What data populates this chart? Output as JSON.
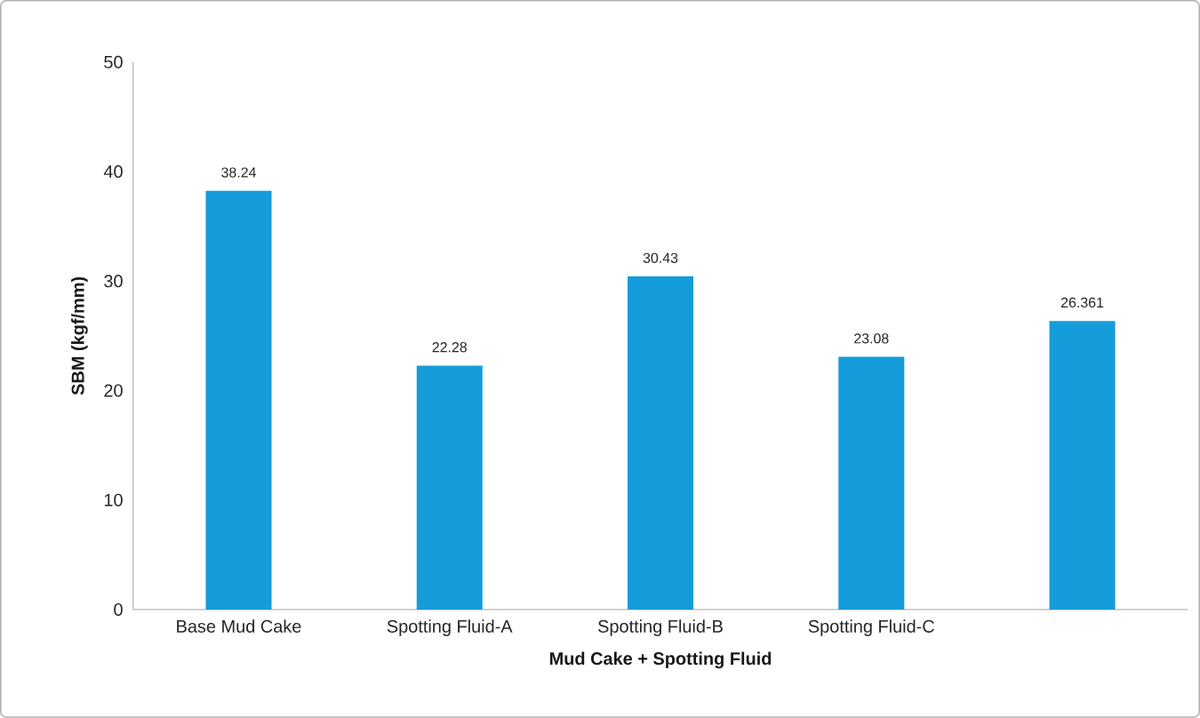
{
  "chart_data": {
    "type": "bar",
    "xlabel": "Mud Cake + Spotting Fluid",
    "ylabel": "SBM (kgf/mm)",
    "categories": [
      "Base Mud Cake",
      "Spotting Fluid-A",
      "Spotting Fluid-B",
      "Spotting Fluid-C",
      null
    ],
    "values": [
      38.24,
      22.28,
      30.43,
      23.08,
      26.361
    ],
    "color": "#139cd9",
    "ylim": [
      0,
      50
    ],
    "yticks": [
      0,
      10,
      20,
      30,
      40,
      50
    ],
    "data_labels": true
  }
}
